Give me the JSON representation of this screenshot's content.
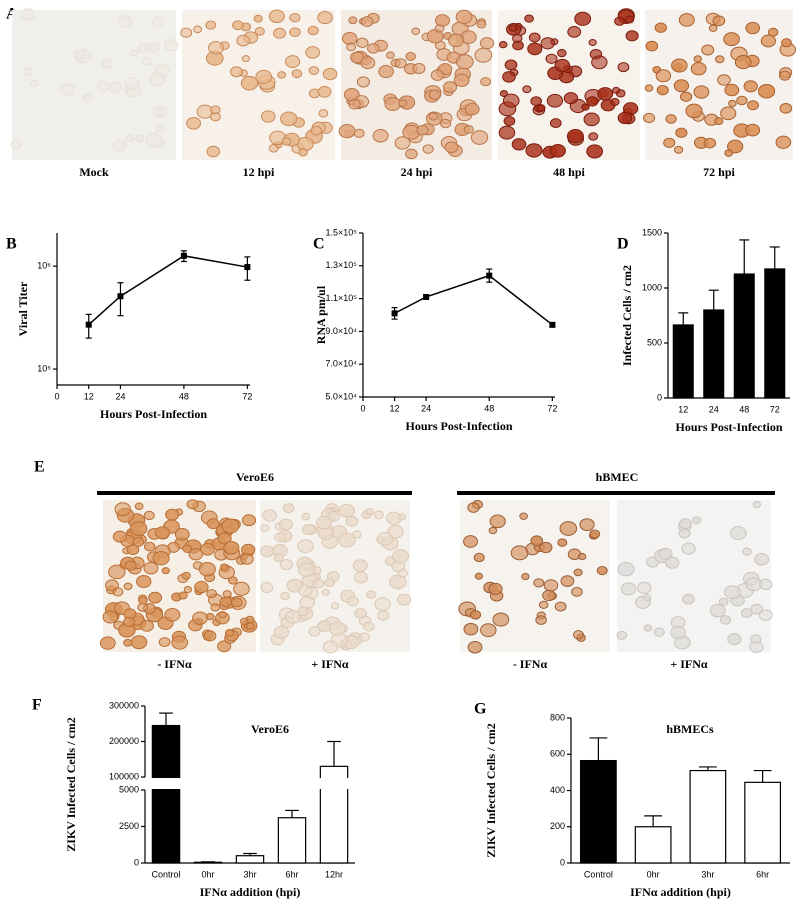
{
  "panel_letters": [
    "A",
    "B",
    "C",
    "D",
    "E",
    "F",
    "G"
  ],
  "images_a": {
    "labels": [
      "Mock",
      "12 hpi",
      "24 hpi",
      "48 hpi",
      "72 hpi"
    ]
  },
  "images_e": {
    "groups": [
      {
        "title": "VeroE6",
        "labels": [
          "- IFNα",
          "+ IFNα"
        ]
      },
      {
        "title": "hBMEC",
        "labels": [
          "- IFNα",
          "+ IFNα"
        ]
      }
    ]
  },
  "chart_data": [
    {
      "type": "line",
      "xlabel": "Hours Post-Infection",
      "ylabel": "Viral Titer",
      "log": true,
      "x": [
        12,
        24,
        48,
        72
      ],
      "values": [
        270000,
        510000,
        1260000,
        980000
      ],
      "errors": [
        70000,
        180000,
        150000,
        250000
      ],
      "color": "#000000",
      "xlim": [
        0,
        73
      ],
      "xticks": [
        0,
        12,
        24,
        48,
        72
      ],
      "ylim": [
        70000,
        2100000
      ],
      "yticks": [
        {
          "value": 100000,
          "label": "10⁵"
        },
        {
          "value": 1000000,
          "label": "10⁶"
        }
      ]
    },
    {
      "type": "line",
      "xlabel": "Hours Post-Infection",
      "ylabel": "RNA  pm/ul",
      "x": [
        12,
        24,
        48,
        72
      ],
      "values": [
        101000,
        111000,
        124000,
        94000
      ],
      "errors": [
        3500,
        1200,
        4000,
        1200
      ],
      "color": "#000000",
      "xlim": [
        0,
        73
      ],
      "xticks": [
        0,
        12,
        24,
        48,
        72
      ],
      "ylim": [
        50000,
        150000
      ],
      "yticks": [
        {
          "value": 50000,
          "label": "5.0×10⁴"
        },
        {
          "value": 70000,
          "label": "7.0×10⁴"
        },
        {
          "value": 90000,
          "label": "9.0×10⁴"
        },
        {
          "value": 110000,
          "label": "1.1×10⁵"
        },
        {
          "value": 130000,
          "label": "1.3×10⁵"
        },
        {
          "value": 150000,
          "label": "1.5×10⁵"
        }
      ]
    },
    {
      "type": "bar",
      "xlabel": "Hours Post-Infection",
      "ylabel": "Infected Cells / cm2",
      "categories": [
        "12",
        "24",
        "48",
        "72"
      ],
      "values": [
        664,
        800,
        1127,
        1173
      ],
      "errors": [
        110,
        180,
        310,
        200
      ],
      "bar_colors": [
        "#000000",
        "#000000",
        "#000000",
        "#000000"
      ],
      "ylim": [
        0,
        1500
      ],
      "yticks": [
        0,
        500,
        1000,
        1500
      ]
    },
    {
      "type": "bar",
      "title": "VeroE6",
      "xlabel": "IFNα addition (hpi)",
      "ylabel": "ZIKV Infected Cells /  cm2",
      "categories": [
        "Control",
        "0hr",
        "3hr",
        "6hr",
        "12hr"
      ],
      "values": [
        245000,
        50,
        500,
        3100,
        130000
      ],
      "errors": [
        35000,
        30,
        150,
        500,
        70000
      ],
      "bar_colors": [
        "#000000",
        "#ffffff",
        "#ffffff",
        "#ffffff",
        "#ffffff"
      ],
      "ylim": [
        0,
        300000
      ],
      "ybreak": [
        5000,
        100000
      ],
      "yticks": [
        0,
        2500,
        5000,
        100000,
        200000,
        300000
      ]
    },
    {
      "type": "bar",
      "title": "hBMECs",
      "xlabel": "IFNα addition (hpi)",
      "ylabel": "ZIKV Infected Cells / cm2",
      "categories": [
        "Control",
        "0hr",
        "3hr",
        "6hr"
      ],
      "values": [
        565,
        200,
        510,
        445
      ],
      "errors": [
        125,
        60,
        20,
        65
      ],
      "bar_colors": [
        "#000000",
        "#ffffff",
        "#ffffff",
        "#ffffff"
      ],
      "ylim": [
        0,
        800
      ],
      "yticks": [
        0,
        200,
        400,
        600,
        800
      ]
    }
  ]
}
